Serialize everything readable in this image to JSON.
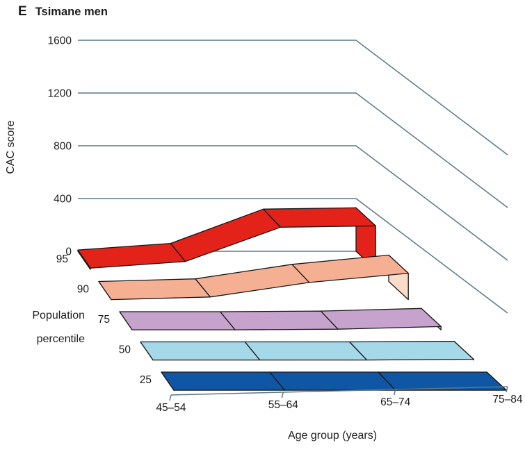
{
  "panel": {
    "letter": "E",
    "title": "Tsimane men"
  },
  "chart_data": {
    "type": "3d-ribbon",
    "title": "Tsimane men",
    "xlabel": "Age group (years)",
    "ylabel": "CAC score",
    "depth_label": "Population percentile",
    "depth_label_lines": [
      "Population",
      "percentile"
    ],
    "categories": [
      "45–54",
      "55–64",
      "65–74",
      "75–84"
    ],
    "y_ticks": [
      0,
      400,
      800,
      1200,
      1600
    ],
    "ylim": [
      0,
      1600
    ],
    "series": [
      {
        "name": "95",
        "percentile": 95,
        "values": [
          10,
          60,
          320,
          330
        ],
        "color": "#e32219",
        "cap_color": "#e32219"
      },
      {
        "name": "90",
        "percentile": 90,
        "values": [
          0,
          20,
          130,
          200
        ],
        "color": "#f5b093",
        "cap_color": "#fbdcc9"
      },
      {
        "name": "75",
        "percentile": 75,
        "values": [
          0,
          0,
          5,
          25
        ],
        "color": "#c6a3cc",
        "cap_color": "#d9c4dd"
      },
      {
        "name": "50",
        "percentile": 50,
        "values": [
          0,
          0,
          0,
          5
        ],
        "color": "#a5d8e8",
        "cap_color": "#c8e8f1"
      },
      {
        "name": "25",
        "percentile": 25,
        "values": [
          0,
          0,
          0,
          0
        ],
        "color": "#0f57a4",
        "cap_color": "#0f57a4"
      }
    ],
    "colors": {
      "gridline": "#5a7887",
      "outline": "#161616",
      "text": "#1c1c1c"
    },
    "legend_position": "left",
    "grid": true
  }
}
